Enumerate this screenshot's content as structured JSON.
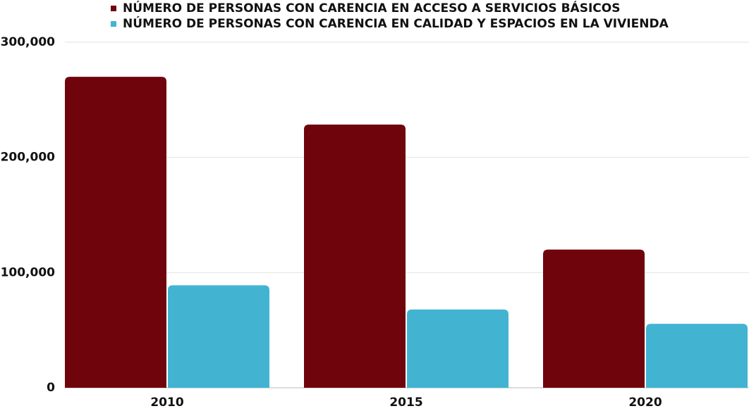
{
  "chart_data": {
    "type": "bar",
    "categories": [
      "2010",
      "2015",
      "2020"
    ],
    "series": [
      {
        "name": "NÚMERO DE PERSONAS CON CARENCIA EN ACCESO A SERVICIOS BÁSICOS",
        "color": "#70040c",
        "values": [
          270000,
          228500,
          120000
        ]
      },
      {
        "name": "NÚMERO DE PERSONAS CON CARENCIA EN CALIDAD Y ESPACIOS EN LA VIVIENDA",
        "color": "#42b4d2",
        "values": [
          89000,
          68000,
          55500
        ]
      }
    ],
    "ylim": [
      0,
      300000
    ],
    "yticks": [
      0,
      {
        "value": 100000,
        "label": "100,000"
      },
      {
        "value": 200000,
        "label": "200,000"
      },
      {
        "value": 300000,
        "label": "300,000"
      }
    ],
    "grid": true,
    "legend": "top"
  }
}
